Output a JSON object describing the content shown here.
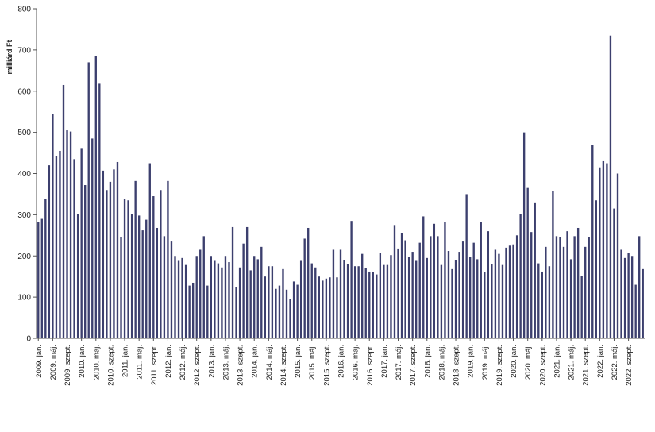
{
  "chart_data": {
    "type": "bar",
    "ylabel": "milliárd Ft",
    "ylim": [
      0,
      800
    ],
    "yticks": [
      0,
      100,
      200,
      300,
      400,
      500,
      600,
      700,
      800
    ],
    "grid": false,
    "legend": "none",
    "bar_color": "#3c3f6e",
    "x_tick_labels": [
      "2009. jan.",
      "2009. máj.",
      "2009. szept.",
      "2010. jan.",
      "2010. máj.",
      "2010. szept.",
      "2011. jan.",
      "2011. máj.",
      "2011. szept.",
      "2012. jan.",
      "2012. máj.",
      "2012. szept.",
      "2013. jan.",
      "2013. máj.",
      "2013. szept.",
      "2014. jan.",
      "2014. máj.",
      "2014. szept.",
      "2015. jan.",
      "2015. máj.",
      "2015. szept.",
      "2016. jan.",
      "2016. máj.",
      "2016. szept.",
      "2017. jan.",
      "2017. máj.",
      "2017. szept.",
      "2018. jan.",
      "2018. máj.",
      "2018. szept.",
      "2019. jan.",
      "2019. máj.",
      "2019. szept.",
      "2020. jan.",
      "2020. máj.",
      "2020. szept.",
      "2021. jan.",
      "2021. máj.",
      "2021. szept.",
      "2022. jan.",
      "2022. máj.",
      "2022. szept."
    ],
    "values": [
      282,
      290,
      338,
      420,
      545,
      442,
      455,
      615,
      505,
      502,
      435,
      302,
      460,
      372,
      670,
      485,
      685,
      618,
      407,
      360,
      380,
      410,
      428,
      245,
      338,
      335,
      302,
      382,
      298,
      262,
      288,
      425,
      345,
      268,
      360,
      248,
      382,
      235,
      200,
      188,
      195,
      178,
      128,
      135,
      200,
      215,
      248,
      128,
      200,
      188,
      182,
      172,
      200,
      185,
      270,
      125,
      172,
      230,
      270,
      165,
      200,
      192,
      222,
      150,
      175,
      175,
      120,
      128,
      168,
      118,
      95,
      138,
      130,
      188,
      242,
      268,
      182,
      172,
      150,
      140,
      145,
      148,
      215,
      148,
      215,
      190,
      180,
      285,
      175,
      175,
      205,
      170,
      162,
      160,
      155,
      208,
      178,
      178,
      202,
      275,
      218,
      255,
      238,
      198,
      210,
      188,
      232,
      296,
      195,
      248,
      278,
      248,
      178,
      282,
      212,
      168,
      190,
      210,
      235,
      350,
      198,
      232,
      192,
      282,
      160,
      260,
      180,
      215,
      205,
      178,
      220,
      225,
      228,
      250,
      302,
      500,
      365,
      258,
      328,
      182,
      162,
      222,
      175,
      358,
      248,
      245,
      222,
      260,
      192,
      248,
      268,
      152,
      222,
      245,
      470,
      335,
      415,
      430,
      425,
      735,
      315,
      400,
      215,
      195,
      208,
      200,
      130,
      248,
      168
    ]
  }
}
